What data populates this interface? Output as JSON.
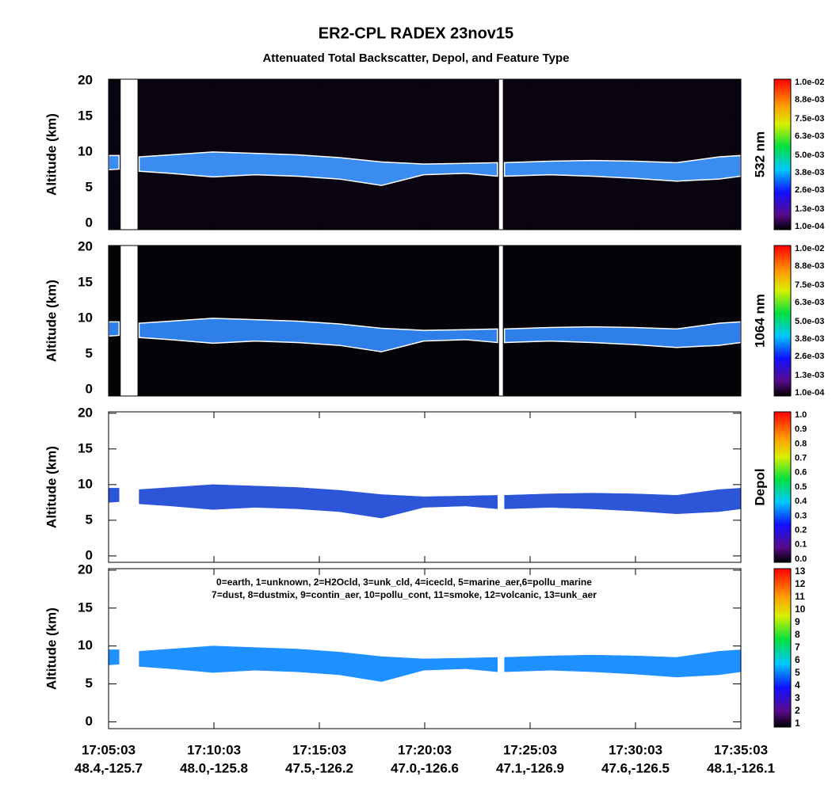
{
  "title": "ER2-CPL RADEX 23nov15",
  "subtitle": "Attenuated Total Backscatter, Depol, and Feature Type",
  "chart_data": [
    {
      "type": "curtain",
      "ylabel": "Altitude (km)",
      "side_label": "532 nm",
      "background": "#0a0410",
      "color": "#3a8cf0",
      "xlim": [
        "17:05:03",
        "17:35:03"
      ],
      "ylim": [
        -0.9,
        20.2
      ],
      "yticks": [
        0,
        5,
        10,
        15,
        20
      ],
      "x": [
        "17:05:03",
        "17:05:33",
        "17:05:50",
        "17:06:30",
        "17:08:00",
        "17:10:00",
        "17:12:00",
        "17:14:00",
        "17:16:00",
        "17:18:00",
        "17:20:00",
        "17:22:00",
        "17:23:30",
        "17:23:40",
        "17:23:50",
        "17:26:00",
        "17:28:00",
        "17:30:00",
        "17:32:00",
        "17:34:00",
        "17:35:03"
      ],
      "top": [
        9.5,
        9.5,
        null,
        9.3,
        9.6,
        10.0,
        9.8,
        9.6,
        9.2,
        8.6,
        8.3,
        8.4,
        8.5,
        null,
        8.5,
        8.7,
        8.8,
        8.7,
        8.5,
        9.3,
        9.5
      ],
      "base": [
        7.5,
        7.6,
        null,
        7.3,
        7.0,
        6.5,
        6.8,
        6.6,
        6.2,
        5.3,
        6.8,
        7.0,
        6.6,
        null,
        6.6,
        6.8,
        6.6,
        6.3,
        5.9,
        6.2,
        6.6
      ],
      "colorbar": {
        "lim": [
          0.0001,
          0.01
        ],
        "ticks": [
          {
            "value": 0.0001,
            "label": "1.0e-04"
          },
          {
            "value": 0.0013,
            "label": "1.3e-03"
          },
          {
            "value": 0.0026,
            "label": "2.6e-03"
          },
          {
            "value": 0.0038,
            "label": "3.8e-03"
          },
          {
            "value": 0.005,
            "label": "5.0e-03"
          },
          {
            "value": 0.0063,
            "label": "6.3e-03"
          },
          {
            "value": 0.0075,
            "label": "7.5e-03"
          },
          {
            "value": 0.0088,
            "label": "8.8e-03"
          },
          {
            "value": 0.01,
            "label": "1.0e-02"
          }
        ]
      }
    },
    {
      "type": "curtain",
      "ylabel": "Altitude (km)",
      "side_label": "1064 nm",
      "background": "#050208",
      "color": "#2f7fe8",
      "xlim": [
        "17:05:03",
        "17:35:03"
      ],
      "ylim": [
        -0.9,
        20.2
      ],
      "yticks": [
        0,
        5,
        10,
        15,
        20
      ],
      "x": [
        "17:05:03",
        "17:05:33",
        "17:05:50",
        "17:06:30",
        "17:08:00",
        "17:10:00",
        "17:12:00",
        "17:14:00",
        "17:16:00",
        "17:18:00",
        "17:20:00",
        "17:22:00",
        "17:23:30",
        "17:23:40",
        "17:23:50",
        "17:26:00",
        "17:28:00",
        "17:30:00",
        "17:32:00",
        "17:34:00",
        "17:35:03"
      ],
      "top": [
        9.5,
        9.5,
        null,
        9.3,
        9.6,
        10.0,
        9.8,
        9.6,
        9.2,
        8.6,
        8.3,
        8.4,
        8.5,
        null,
        8.5,
        8.7,
        8.8,
        8.7,
        8.5,
        9.3,
        9.5
      ],
      "base": [
        7.5,
        7.6,
        null,
        7.3,
        7.0,
        6.5,
        6.8,
        6.6,
        6.2,
        5.3,
        6.8,
        7.0,
        6.6,
        null,
        6.6,
        6.8,
        6.6,
        6.3,
        5.9,
        6.2,
        6.6
      ],
      "colorbar": {
        "lim": [
          0.0001,
          0.01
        ],
        "ticks": [
          {
            "value": 0.0001,
            "label": "1.0e-04"
          },
          {
            "value": 0.0013,
            "label": "1.3e-03"
          },
          {
            "value": 0.0026,
            "label": "2.6e-03"
          },
          {
            "value": 0.0038,
            "label": "3.8e-03"
          },
          {
            "value": 0.005,
            "label": "5.0e-03"
          },
          {
            "value": 0.0063,
            "label": "6.3e-03"
          },
          {
            "value": 0.0075,
            "label": "7.5e-03"
          },
          {
            "value": 0.0088,
            "label": "8.8e-03"
          },
          {
            "value": 0.01,
            "label": "1.0e-02"
          }
        ]
      }
    },
    {
      "type": "curtain",
      "ylabel": "Altitude (km)",
      "side_label": "Depol",
      "color": "#2d55d8",
      "xlim": [
        "17:05:03",
        "17:35:03"
      ],
      "ylim": [
        -0.9,
        20.2
      ],
      "yticks": [
        0,
        5,
        10,
        15,
        20
      ],
      "x": [
        "17:05:03",
        "17:05:33",
        "17:05:50",
        "17:06:30",
        "17:08:00",
        "17:10:00",
        "17:12:00",
        "17:14:00",
        "17:16:00",
        "17:18:00",
        "17:20:00",
        "17:22:00",
        "17:23:30",
        "17:23:40",
        "17:23:50",
        "17:26:00",
        "17:28:00",
        "17:30:00",
        "17:32:00",
        "17:34:00",
        "17:35:03"
      ],
      "top": [
        9.5,
        9.5,
        null,
        9.3,
        9.6,
        10.0,
        9.8,
        9.6,
        9.2,
        8.6,
        8.3,
        8.4,
        8.5,
        null,
        8.5,
        8.7,
        8.8,
        8.7,
        8.5,
        9.3,
        9.5
      ],
      "base": [
        7.5,
        7.6,
        null,
        7.3,
        7.0,
        6.5,
        6.8,
        6.6,
        6.2,
        5.3,
        6.8,
        7.0,
        6.6,
        null,
        6.6,
        6.8,
        6.6,
        6.3,
        5.9,
        6.2,
        6.6
      ],
      "colorbar": {
        "lim": [
          0,
          1
        ],
        "ticks": [
          {
            "value": 0,
            "label": "0.0"
          },
          0.1,
          0.2,
          0.3,
          0.4,
          0.5,
          0.6,
          0.7,
          0.8,
          0.9,
          {
            "value": 1,
            "label": "1.0"
          }
        ]
      }
    },
    {
      "type": "curtain",
      "ylabel": "Altitude (km)",
      "color": "#1e90ff",
      "annotations": [
        "0=earth, 1=unknown, 2=H2Ocld, 3=unk_cld, 4=icecld, 5=marine_aer,6=pollu_marine",
        "7=dust, 8=dustmix, 9=contin_aer, 10=pollu_cont, 11=smoke, 12=volcanic, 13=unk_aer"
      ],
      "xlim": [
        "17:05:03",
        "17:35:03"
      ],
      "ylim": [
        -0.9,
        20.2
      ],
      "yticks": [
        0,
        5,
        10,
        15,
        20
      ],
      "x": [
        "17:05:03",
        "17:05:33",
        "17:05:50",
        "17:06:30",
        "17:08:00",
        "17:10:00",
        "17:12:00",
        "17:14:00",
        "17:16:00",
        "17:18:00",
        "17:20:00",
        "17:22:00",
        "17:23:30",
        "17:23:40",
        "17:23:50",
        "17:26:00",
        "17:28:00",
        "17:30:00",
        "17:32:00",
        "17:34:00",
        "17:35:03"
      ],
      "top": [
        9.5,
        9.5,
        null,
        9.3,
        9.6,
        10.0,
        9.8,
        9.6,
        9.2,
        8.6,
        8.3,
        8.4,
        8.5,
        null,
        8.5,
        8.7,
        8.8,
        8.7,
        8.5,
        9.3,
        9.5
      ],
      "base": [
        7.5,
        7.6,
        null,
        7.3,
        7.0,
        6.5,
        6.8,
        6.6,
        6.2,
        5.3,
        6.8,
        7.0,
        6.6,
        null,
        6.6,
        6.8,
        6.6,
        6.3,
        5.9,
        6.2,
        6.6
      ],
      "xticks": [
        "17:05:03",
        "17:10:03",
        "17:15:03",
        "17:20:03",
        "17:25:03",
        "17:30:03",
        "17:35:03"
      ],
      "xtick_locations": [
        "48.4,-125.7",
        "48.0,-125.8",
        "47.5,-126.2",
        "47.0,-126.6",
        "47.1,-126.9",
        "47.6,-126.5",
        "48.1,-126.1"
      ],
      "colorbar": {
        "lim": [
          1,
          13
        ],
        "ticks": [
          1,
          2,
          3,
          4,
          5,
          6,
          7,
          8,
          9,
          10,
          11,
          12,
          13
        ]
      }
    }
  ]
}
